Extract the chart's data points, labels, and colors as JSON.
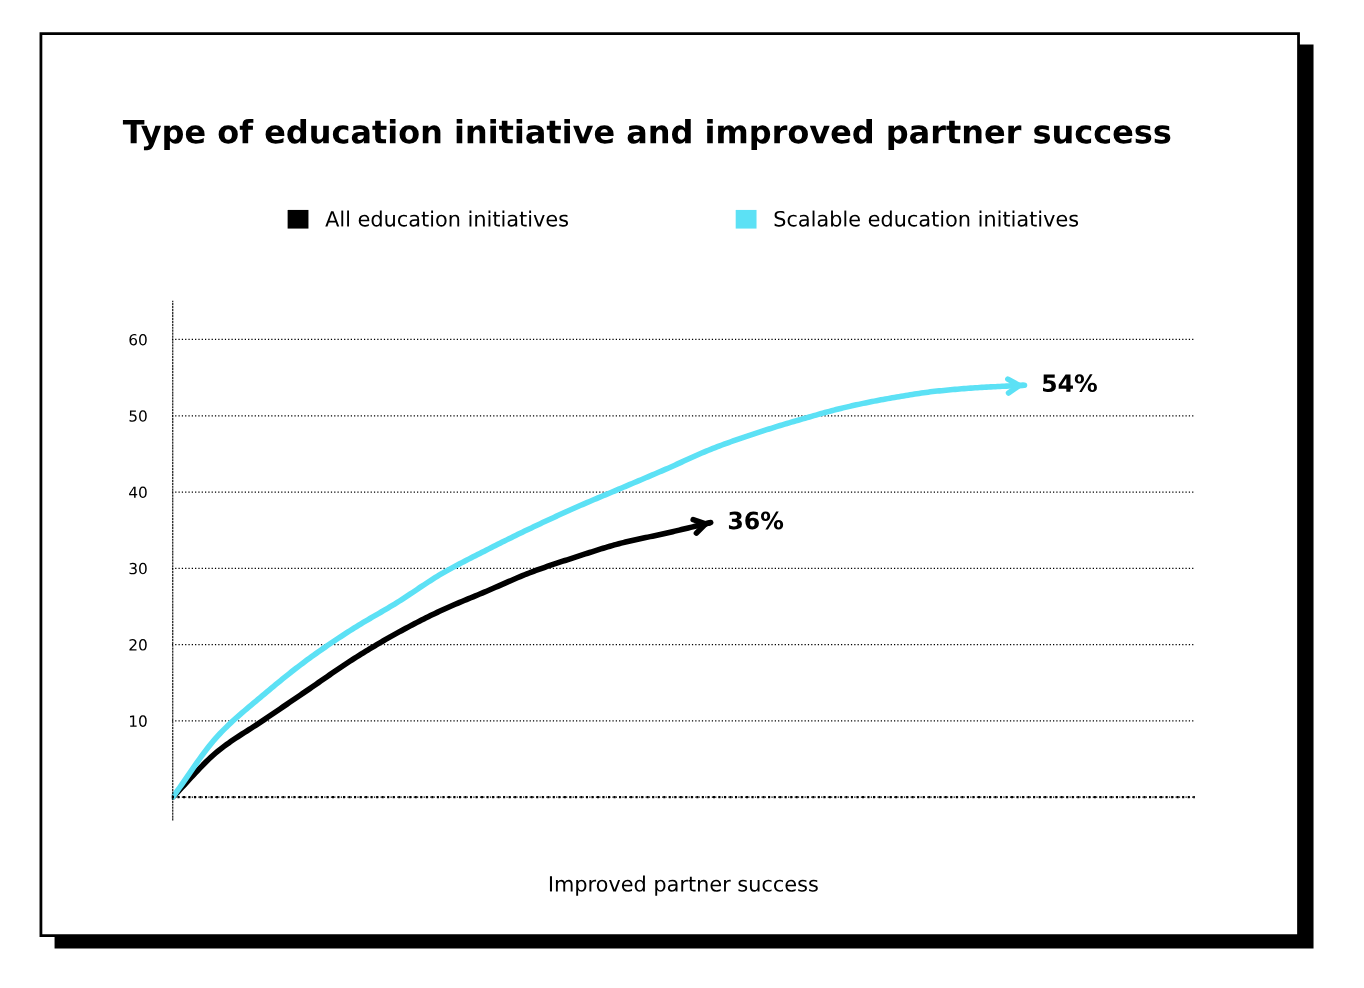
{
  "chart_data": {
    "type": "line",
    "title": "Type of education initiative and improved partner success",
    "xlabel": "Improved partner success",
    "categories": [
      null,
      null,
      null,
      null,
      null,
      null,
      null,
      null,
      null,
      null,
      null,
      null,
      null,
      null,
      null,
      null,
      null,
      null,
      null,
      null
    ],
    "series": [
      {
        "name": "All education initiatives",
        "color": "#000000",
        "values": [
          0,
          6,
          10,
          14,
          18,
          21.5,
          24.5,
          27,
          29.5,
          31.5,
          33.3,
          34.6,
          36,
          null,
          null,
          null,
          null,
          null,
          null,
          null
        ],
        "value_labels": [
          null,
          null,
          null,
          null,
          null,
          null,
          null,
          null,
          null,
          null,
          null,
          null,
          "36%",
          null,
          null,
          null,
          null,
          null,
          null,
          null
        ]
      },
      {
        "name": "Scalable education initiatives",
        "color": "#5ce1f5",
        "values": [
          0,
          8,
          13.3,
          18,
          22,
          25.5,
          29.3,
          32.4,
          35.3,
          38,
          40.5,
          43,
          45.6,
          47.7,
          49.5,
          51.1,
          52.3,
          53.2,
          53.7,
          54
        ],
        "value_labels": [
          null,
          null,
          null,
          null,
          null,
          null,
          null,
          null,
          null,
          null,
          null,
          null,
          null,
          null,
          null,
          null,
          null,
          null,
          null,
          "54%"
        ]
      }
    ],
    "ylim": [
      -3,
      65
    ],
    "yticks": [
      {
        "value": 0,
        "label": null
      },
      10,
      20,
      30,
      40,
      50,
      60
    ],
    "ref_lines": [
      {
        "axis": "y",
        "value": 0,
        "color": "#000000",
        "line_style": "dotted"
      }
    ],
    "grid": "y",
    "legend": "top",
    "tick_labels": "y",
    "marker": "none",
    "line_style": "solid"
  }
}
